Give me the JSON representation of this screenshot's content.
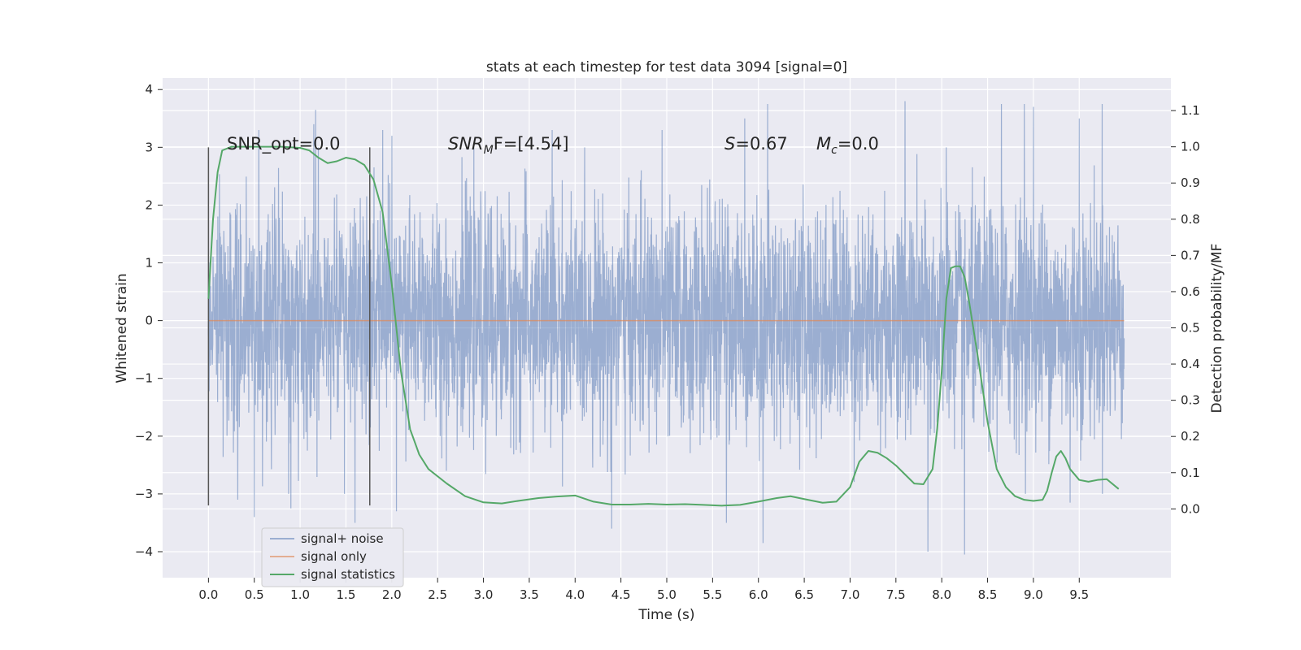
{
  "chart_data": {
    "type": "line",
    "title": "stats at each timestep for test data 3094 [signal=0]",
    "xlabel": "Time (s)",
    "ylabel": "Whitened strain",
    "y2label": "Detection probability/MF",
    "xlim": [
      -0.5,
      10.5
    ],
    "ylim": [
      -4.45,
      4.2
    ],
    "y2lim": [
      -0.19,
      1.19
    ],
    "x_ticks": [
      0.0,
      0.5,
      1.0,
      1.5,
      2.0,
      2.5,
      3.0,
      3.5,
      4.0,
      4.5,
      5.0,
      5.5,
      6.0,
      6.5,
      7.0,
      7.5,
      8.0,
      8.5,
      9.0,
      9.5
    ],
    "x_tick_labels": [
      "0.0",
      "0.5",
      "1.0",
      "1.5",
      "2.0",
      "2.5",
      "3.0",
      "3.5",
      "4.0",
      "4.5",
      "5.0",
      "5.5",
      "6.0",
      "6.5",
      "7.0",
      "7.5",
      "8.0",
      "8.5",
      "9.0",
      "9.5"
    ],
    "y_ticks": [
      4,
      3,
      2,
      1,
      0,
      -1,
      -2,
      -3,
      -4
    ],
    "y_tick_labels": [
      "4",
      "3",
      "2",
      "1",
      "0",
      "−1",
      "−2",
      "−3",
      "−4"
    ],
    "y2_ticks": [
      1.1,
      1.0,
      0.9,
      0.8,
      0.7,
      0.6,
      0.5,
      0.4,
      0.3,
      0.2,
      0.1,
      0.0
    ],
    "y2_tick_labels": [
      "1.1",
      "1.0",
      "0.9",
      "0.8",
      "0.7",
      "0.6",
      "0.5",
      "0.4",
      "0.3",
      "0.2",
      "0.1",
      "0.0"
    ],
    "grid": true,
    "legend_position": "lower-left",
    "annotations": {
      "snr_opt": "SNR_opt=0.0",
      "snr_mf_sym": "SNR",
      "snr_mf_sub": "M",
      "snr_mf_rest": "F=[4.54]",
      "s_sym": "S",
      "s_rest": "=0.67",
      "mc_sym": "M",
      "mc_sub": "c",
      "mc_rest": "=0.0"
    },
    "vlines": [
      {
        "x": 0.0,
        "y_range": [
          -3.2,
          3.0
        ]
      },
      {
        "x": 1.76,
        "y_range": [
          -3.2,
          3.0
        ]
      }
    ],
    "colors": {
      "background": "#eaeaf2",
      "grid": "#ffffff",
      "noise": "#4c72b0",
      "signal": "#dd8452",
      "statistic": "#55a868",
      "vline": "#555555"
    },
    "series": [
      {
        "name": "signal+ noise",
        "axis": "left",
        "x_range": [
          0.0,
          9.99
        ],
        "band_upper_typical": 1.8,
        "band_lower_typical": -1.8,
        "peaks_up": [
          {
            "x": 0.55,
            "y": 3.3
          },
          {
            "x": 1.15,
            "y": 3.4
          },
          {
            "x": 1.17,
            "y": 3.65
          },
          {
            "x": 1.9,
            "y": 3.3
          },
          {
            "x": 2.0,
            "y": 3.2
          },
          {
            "x": 3.75,
            "y": 3.3
          },
          {
            "x": 4.95,
            "y": 3.3
          },
          {
            "x": 5.85,
            "y": 3.5
          },
          {
            "x": 6.1,
            "y": 3.75
          },
          {
            "x": 7.6,
            "y": 3.8
          },
          {
            "x": 8.05,
            "y": 3.0
          },
          {
            "x": 8.65,
            "y": 3.75
          },
          {
            "x": 8.9,
            "y": 3.75
          },
          {
            "x": 9.0,
            "y": 3.7
          },
          {
            "x": 9.5,
            "y": 3.5
          },
          {
            "x": 9.75,
            "y": 3.75
          }
        ],
        "peaks_down": [
          {
            "x": 0.32,
            "y": -3.1
          },
          {
            "x": 0.5,
            "y": -3.4
          },
          {
            "x": 0.9,
            "y": -3.25
          },
          {
            "x": 1.6,
            "y": -3.5
          },
          {
            "x": 2.05,
            "y": -3.3
          },
          {
            "x": 4.4,
            "y": -3.6
          },
          {
            "x": 5.65,
            "y": -3.5
          },
          {
            "x": 6.05,
            "y": -3.85
          },
          {
            "x": 7.85,
            "y": -4.0
          },
          {
            "x": 8.25,
            "y": -4.05
          },
          {
            "x": 9.4,
            "y": -3.15
          }
        ]
      },
      {
        "name": "signal only",
        "axis": "left",
        "x": [
          0.0,
          9.99
        ],
        "y": [
          0.0,
          0.0
        ]
      },
      {
        "name": "signal statistics",
        "axis": "right",
        "x": [
          0.0,
          0.05,
          0.1,
          0.15,
          0.25,
          0.4,
          0.6,
          0.8,
          1.0,
          1.1,
          1.2,
          1.3,
          1.4,
          1.5,
          1.6,
          1.7,
          1.8,
          1.9,
          2.0,
          2.1,
          2.2,
          2.3,
          2.4,
          2.6,
          2.8,
          3.0,
          3.2,
          3.4,
          3.6,
          3.8,
          4.0,
          4.2,
          4.4,
          4.6,
          4.8,
          5.0,
          5.2,
          5.4,
          5.6,
          5.8,
          6.0,
          6.2,
          6.35,
          6.5,
          6.7,
          6.85,
          7.0,
          7.1,
          7.2,
          7.3,
          7.4,
          7.5,
          7.6,
          7.7,
          7.8,
          7.9,
          7.95,
          8.0,
          8.05,
          8.1,
          8.15,
          8.2,
          8.25,
          8.3,
          8.4,
          8.5,
          8.6,
          8.7,
          8.8,
          8.9,
          9.0,
          9.1,
          9.15,
          9.2,
          9.25,
          9.3,
          9.35,
          9.4,
          9.5,
          9.6,
          9.7,
          9.8,
          9.93
        ],
        "y": [
          0.58,
          0.8,
          0.93,
          0.99,
          1.0,
          1.0,
          1.0,
          1.0,
          0.997,
          0.99,
          0.97,
          0.955,
          0.96,
          0.97,
          0.965,
          0.95,
          0.91,
          0.82,
          0.62,
          0.38,
          0.22,
          0.15,
          0.11,
          0.07,
          0.035,
          0.018,
          0.015,
          0.023,
          0.03,
          0.034,
          0.037,
          0.02,
          0.012,
          0.012,
          0.014,
          0.012,
          0.013,
          0.011,
          0.009,
          0.011,
          0.02,
          0.03,
          0.035,
          0.027,
          0.017,
          0.02,
          0.06,
          0.13,
          0.16,
          0.155,
          0.14,
          0.12,
          0.095,
          0.07,
          0.068,
          0.11,
          0.22,
          0.38,
          0.58,
          0.665,
          0.67,
          0.67,
          0.64,
          0.57,
          0.41,
          0.24,
          0.11,
          0.06,
          0.035,
          0.025,
          0.022,
          0.025,
          0.05,
          0.1,
          0.145,
          0.16,
          0.14,
          0.11,
          0.08,
          0.075,
          0.08,
          0.082,
          0.055
        ]
      }
    ]
  }
}
